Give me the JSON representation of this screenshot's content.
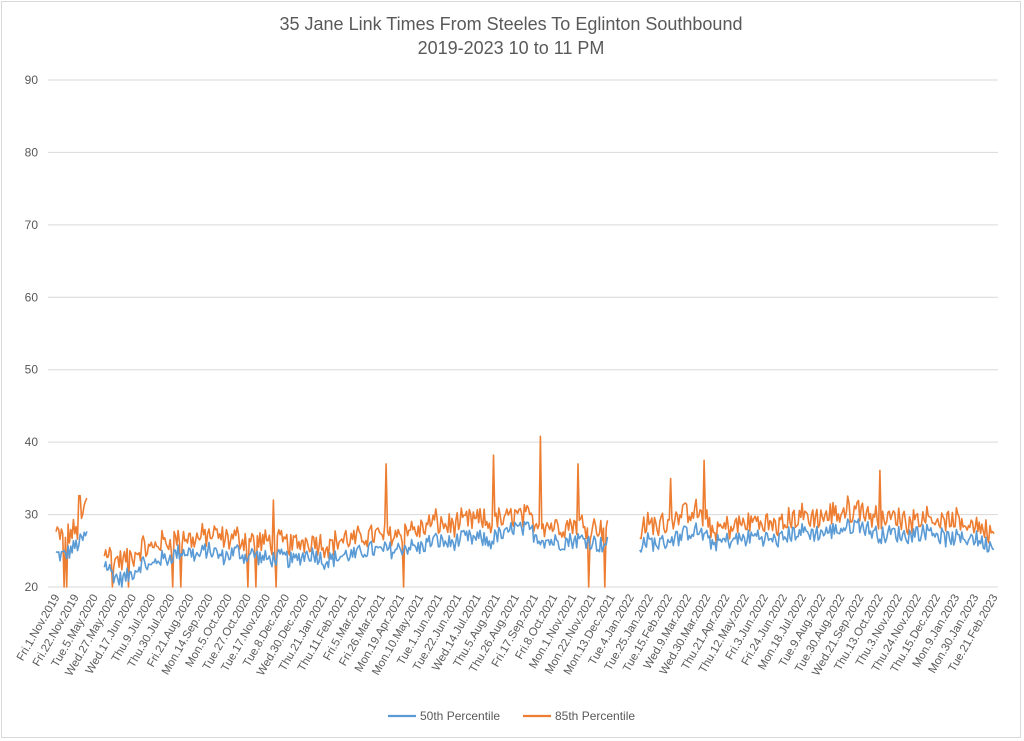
{
  "chart_data": {
    "type": "line",
    "title": "35 Jane Link Times From Steeles To Eglinton Southbound",
    "subtitle": "2019-2023 10 to 11 PM",
    "xlabel": "",
    "ylabel": "",
    "ylim": [
      20,
      90
    ],
    "yticks": [
      20,
      30,
      40,
      50,
      60,
      70,
      80,
      90
    ],
    "grid": "horizontal",
    "legend": "bottom",
    "x_tick_labels": [
      "Fri.1.Nov.2019",
      "Fri.22.Nov.2019",
      "Tue.5.May.2020",
      "Wed.27.May.2020",
      "Wed.17.Jun.2020",
      "Thu.9.Jul.2020",
      "Thu.30.Jul.2020",
      "Fri.21.Aug.2020",
      "Mon.14.Sep.2020",
      "Mon.5.Oct.2020",
      "Tue.27.Oct.2020",
      "Tue.17.Nov.2020",
      "Tue.8.Dec.2020",
      "Wed.30.Dec.2020",
      "Thu.21.Jan.2021",
      "Thu.11.Feb.2021",
      "Fri.5.Mar.2021",
      "Fri.26.Mar.2021",
      "Mon.19.Apr.2021",
      "Mon.10.May.2021",
      "Tue.1.Jun.2021",
      "Tue.22.Jun.2021",
      "Wed.14.Jul.2021",
      "Thu.5.Aug.2021",
      "Thu.26.Aug.2021",
      "Fri.17.Sep.2021",
      "Fri.8.Oct.2021",
      "Mon.1.Nov.2021",
      "Mon.22.Nov.2021",
      "Mon.13.Dec.2021",
      "Tue.4.Jan.2022",
      "Tue.25.Jan.2022",
      "Tue.15.Feb.2022",
      "Wed.9.Mar.2022",
      "Wed.30.Mar.2022",
      "Thu.21.Apr.2022",
      "Thu.12.May.2022",
      "Fri.3.Jun.2022",
      "Fri.24.Jun.2022",
      "Mon.18.Jul.2022",
      "Tue.9.Aug.2022",
      "Tue.30.Aug.2022",
      "Wed.21.Sep.2022",
      "Thu.13.Oct.2022",
      "Thu.3.Nov.2022",
      "Thu.24.Nov.2022",
      "Thu.15.Dec.2022",
      "Mon.9.Jan.2023",
      "Mon.30.Jan.2023",
      "Tue.21.Feb.2023"
    ],
    "series": [
      {
        "name": "50th Percentile",
        "color": "#5b9bd5",
        "values": [
          24.5,
          24.3,
          25.2,
          26.1,
          27.3,
          null,
          23.5,
          22.1,
          21.0,
          21.4,
          22.3,
          23.5,
          22.6,
          24.0,
          23.8,
          24.5,
          25.0,
          24.8,
          24.2,
          25.1,
          24.9,
          24.1,
          24.5,
          25.0,
          24.2,
          24.6,
          24.0,
          23.8,
          24.0,
          24.1,
          23.5,
          24.2,
          24.6,
          24.5,
          23.6,
          23.8,
          24.2,
          24.5,
          24.3,
          25.0,
          25.2,
          24.9,
          25.2,
          25.0,
          25.5,
          25.6,
          25.3,
          26.0,
          26.5,
          26.2,
          26.0,
          26.4,
          26.8,
          26.6,
          26.7,
          26.1,
          27.2,
          27.0,
          28.3,
          27.8,
          28.0,
          27.0,
          26.5,
          26.3,
          26.2,
          26.4,
          26.5,
          26.6,
          26.3,
          25.8,
          26.1,
          null,
          null,
          null,
          25.8,
          26.4,
          26.0,
          26.1,
          26.7,
          26.8,
          27.5,
          27.9,
          27.3,
          26.2,
          26.1,
          26.4,
          26.5,
          26.6,
          26.8,
          27.2,
          26.7,
          26.4,
          26.6,
          27.2,
          27.6,
          27.7,
          27.4,
          27.5,
          27.6,
          27.9,
          28.1,
          28.5,
          28.7,
          28.0,
          27.4,
          27.1,
          27.5,
          27.3,
          27.0,
          27.6,
          27.5,
          28.0,
          27.2,
          26.6,
          26.8,
          26.5,
          27.0,
          26.5,
          25.9,
          26.0
        ],
        "ranges_note": null
      },
      {
        "name": "85th Percentile",
        "color": "#ed7d31",
        "values": [
          27.4,
          26.8,
          27.5,
          28.0,
          32.5,
          null,
          25.6,
          24.3,
          23.6,
          23.8,
          24.5,
          25.6,
          25.1,
          26.2,
          26.1,
          26.6,
          26.9,
          26.6,
          26.7,
          27.1,
          27.2,
          26.8,
          26.6,
          26.9,
          26.5,
          26.5,
          26.2,
          26.3,
          26.1,
          26.2,
          25.8,
          26.2,
          26.5,
          26.4,
          25.8,
          25.9,
          26.5,
          26.6,
          26.4,
          27.0,
          27.3,
          27.0,
          27.5,
          27.2,
          27.9,
          28.1,
          27.7,
          28.4,
          29.1,
          28.6,
          28.5,
          28.7,
          29.1,
          29.2,
          29.2,
          28.6,
          29.3,
          29.1,
          30.1,
          29.8,
          29.5,
          28.9,
          28.7,
          28.5,
          28.4,
          28.6,
          28.8,
          28.7,
          28.4,
          28.2,
          28.3,
          null,
          null,
          null,
          28.0,
          28.5,
          28.6,
          28.8,
          29.6,
          29.5,
          30.2,
          30.5,
          29.6,
          28.0,
          27.9,
          28.3,
          28.4,
          28.6,
          28.8,
          29.2,
          28.7,
          28.4,
          28.8,
          29.3,
          29.6,
          29.8,
          29.5,
          29.6,
          29.8,
          30.1,
          30.5,
          30.8,
          30.9,
          30.2,
          29.6,
          29.3,
          29.6,
          29.4,
          29.1,
          29.7,
          29.6,
          30.0,
          29.2,
          28.8,
          29.0,
          28.5,
          29.0,
          28.5,
          27.8,
          28.0
        ]
      }
    ],
    "spikes_85th": [
      {
        "near": "Thu.1.Apr.2021",
        "value": 37
      },
      {
        "near": "Mon.12.Jul.2021",
        "value": 38.2
      },
      {
        "near": "Mon.16.Aug.2021",
        "value": 40.8
      },
      {
        "near": "Thu.30.Sep.2021",
        "value": 37
      },
      {
        "near": "Tue.17.Nov.2020",
        "value": 32
      },
      {
        "near": "Thu.17.Feb.2022",
        "value": 37.5
      },
      {
        "near": "Tue.1.Nov.2022",
        "value": 36.1
      }
    ]
  },
  "legend": {
    "series1_label": "50th Percentile",
    "series2_label": "85th Percentile"
  }
}
